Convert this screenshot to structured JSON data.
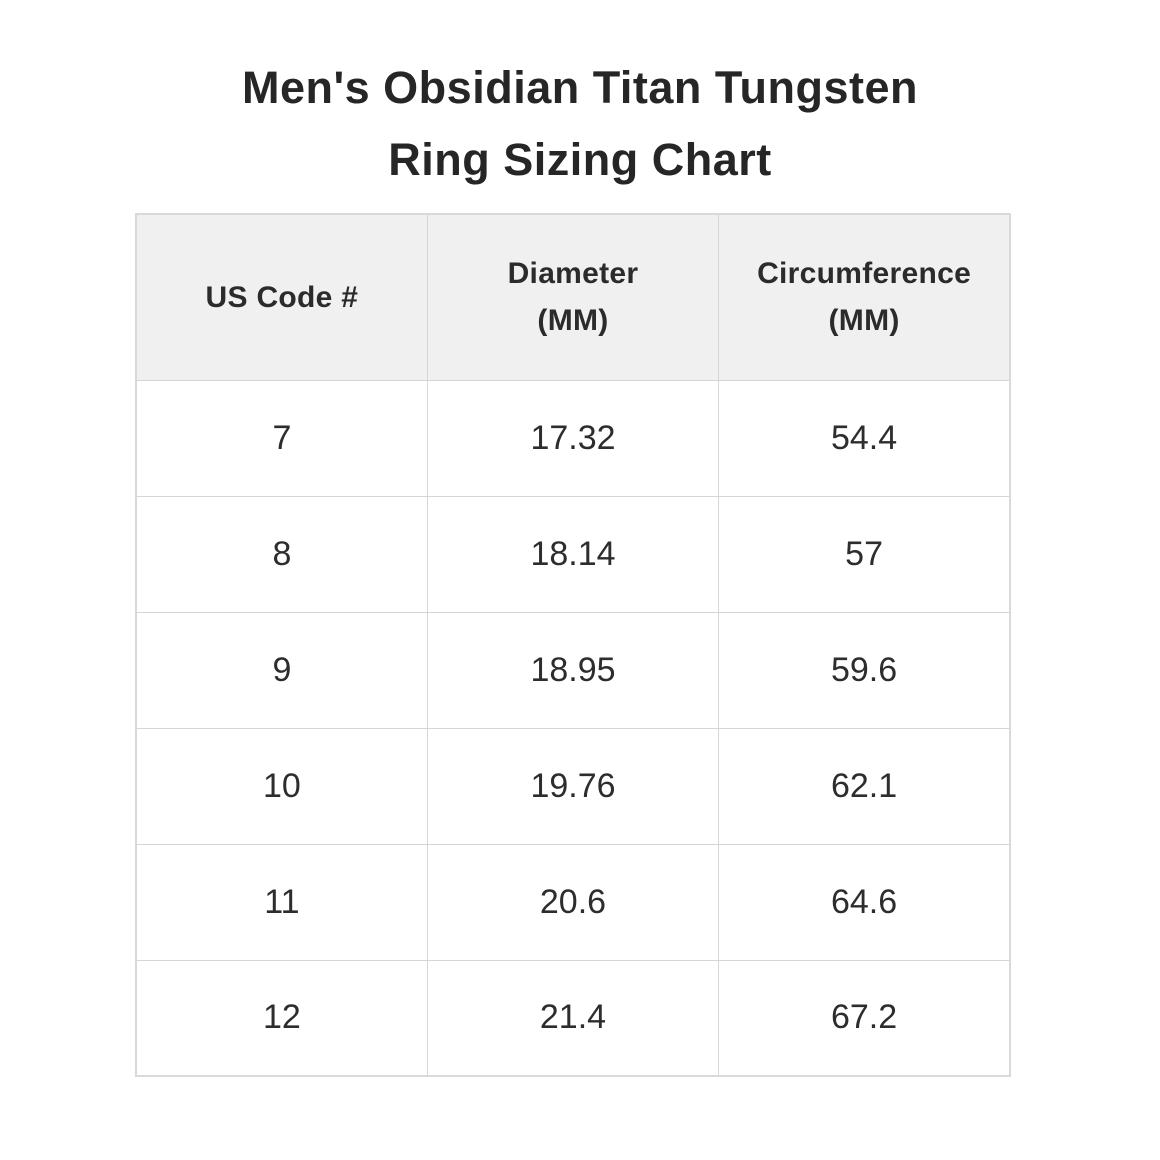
{
  "title": {
    "line1": "Men's Obsidian Titan Tungsten",
    "line2": "Ring Sizing Chart"
  },
  "table": {
    "headers": [
      {
        "line1": "US Code #",
        "line2": ""
      },
      {
        "line1": "Diameter",
        "line2": "(MM)"
      },
      {
        "line1": "Circumference",
        "line2": "(MM)"
      }
    ],
    "rows": [
      {
        "us_code": "7",
        "diameter": "17.32",
        "circumference": "54.4"
      },
      {
        "us_code": "8",
        "diameter": "18.14",
        "circumference": "57"
      },
      {
        "us_code": "9",
        "diameter": "18.95",
        "circumference": "59.6"
      },
      {
        "us_code": "10",
        "diameter": "19.76",
        "circumference": "62.1"
      },
      {
        "us_code": "11",
        "diameter": "20.6",
        "circumference": "64.6"
      },
      {
        "us_code": "12",
        "diameter": "21.4",
        "circumference": "67.2"
      }
    ]
  },
  "colors": {
    "header_background": "#f0f0f0",
    "border": "#d6d6d6",
    "text": "#2b2b2b",
    "page_background": "#ffffff"
  },
  "chart_data": {
    "type": "table",
    "title": "Men's Obsidian Titan Tungsten Ring Sizing Chart",
    "columns": [
      "US Code #",
      "Diameter (MM)",
      "Circumference (MM)"
    ],
    "rows": [
      [
        7,
        17.32,
        54.4
      ],
      [
        8,
        18.14,
        57
      ],
      [
        9,
        18.95,
        59.6
      ],
      [
        10,
        19.76,
        62.1
      ],
      [
        11,
        20.6,
        64.6
      ],
      [
        12,
        21.4,
        67.2
      ]
    ]
  }
}
